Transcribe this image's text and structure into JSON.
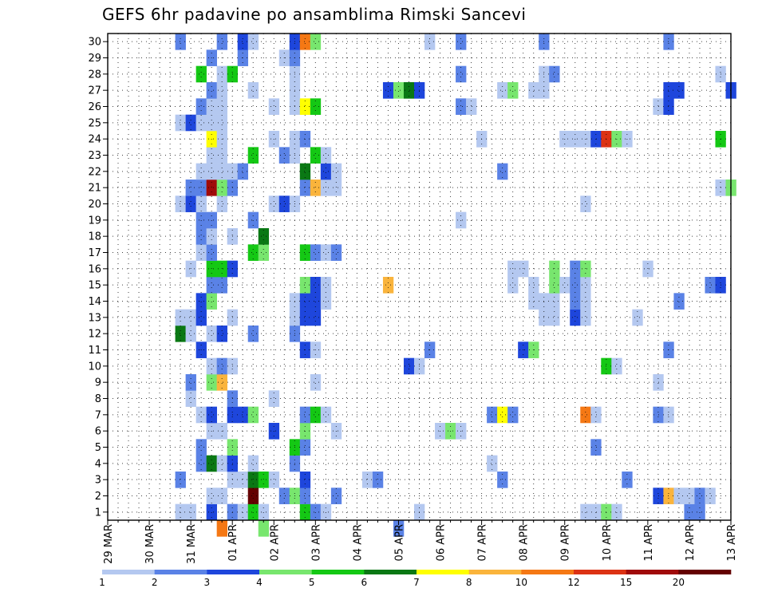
{
  "chart_data": {
    "type": "heatmap",
    "title": "GEFS 6hr padavine po ansamblima Rimski Sancevi",
    "x_tick_labels": [
      "29 MAR",
      "30 MAR",
      "31 MAR",
      "01 APR",
      "02 APR",
      "03 APR",
      "04 APR",
      "05 APR",
      "06 APR",
      "07 APR",
      "08 APR",
      "09 APR",
      "10 APR",
      "11 APR",
      "12 APR",
      "13 APR"
    ],
    "y_tick_labels": [
      1,
      2,
      3,
      4,
      5,
      6,
      7,
      8,
      9,
      10,
      11,
      12,
      13,
      14,
      15,
      16,
      17,
      18,
      19,
      20,
      21,
      22,
      23,
      24,
      25,
      26,
      27,
      28,
      29,
      30
    ],
    "x_range_steps": [
      0,
      60
    ],
    "y_range": [
      0.5,
      30.5
    ],
    "grid": true,
    "colorbar": {
      "labels": [
        "1",
        "2",
        "3",
        "4",
        "5",
        "6",
        "7",
        "8",
        "10",
        "12",
        "15",
        "20"
      ],
      "colors": [
        "#b4c8f0",
        "#5a82e6",
        "#1e46dc",
        "#78e66e",
        "#14c814",
        "#0a7814",
        "#ffff00",
        "#fab43c",
        "#f57814",
        "#dc3214",
        "#a00a0a",
        "#640000"
      ]
    },
    "cell_format": "[time_step, member, color_class]; time_step 0 = 29 MAR 00Z, 4 steps per day",
    "cells": [
      [
        7,
        1,
        0
      ],
      [
        8,
        1,
        0
      ],
      [
        10,
        1,
        2
      ],
      [
        12,
        1,
        1
      ],
      [
        13,
        1,
        0
      ],
      [
        14,
        1,
        4
      ],
      [
        15,
        1,
        0
      ],
      [
        19,
        1,
        4
      ],
      [
        20,
        1,
        1
      ],
      [
        21,
        1,
        0
      ],
      [
        30,
        1,
        0
      ],
      [
        46,
        1,
        0
      ],
      [
        47,
        1,
        0
      ],
      [
        48,
        1,
        3
      ],
      [
        49,
        1,
        0
      ],
      [
        56,
        1,
        1
      ],
      [
        57,
        1,
        1
      ],
      [
        10,
        2,
        0
      ],
      [
        11,
        2,
        0
      ],
      [
        14,
        2,
        11
      ],
      [
        17,
        2,
        1
      ],
      [
        18,
        2,
        3
      ],
      [
        19,
        2,
        1
      ],
      [
        22,
        2,
        1
      ],
      [
        53,
        2,
        2
      ],
      [
        54,
        2,
        7
      ],
      [
        55,
        2,
        0
      ],
      [
        56,
        2,
        0
      ],
      [
        57,
        2,
        1
      ],
      [
        58,
        2,
        0
      ],
      [
        7,
        3,
        1
      ],
      [
        12,
        3,
        0
      ],
      [
        13,
        3,
        0
      ],
      [
        14,
        3,
        5
      ],
      [
        15,
        3,
        4
      ],
      [
        16,
        3,
        0
      ],
      [
        19,
        3,
        2
      ],
      [
        25,
        3,
        0
      ],
      [
        26,
        3,
        1
      ],
      [
        38,
        3,
        1
      ],
      [
        50,
        3,
        1
      ],
      [
        9,
        4,
        1
      ],
      [
        10,
        4,
        5
      ],
      [
        11,
        4,
        0
      ],
      [
        12,
        4,
        2
      ],
      [
        14,
        4,
        0
      ],
      [
        18,
        4,
        1
      ],
      [
        37,
        4,
        0
      ],
      [
        9,
        5,
        1
      ],
      [
        12,
        5,
        3
      ],
      [
        18,
        5,
        4
      ],
      [
        19,
        5,
        1
      ],
      [
        47,
        5,
        1
      ],
      [
        10,
        6,
        0
      ],
      [
        11,
        6,
        0
      ],
      [
        16,
        6,
        2
      ],
      [
        19,
        6,
        3
      ],
      [
        22,
        6,
        0
      ],
      [
        32,
        6,
        0
      ],
      [
        33,
        6,
        3
      ],
      [
        34,
        6,
        0
      ],
      [
        9,
        7,
        0
      ],
      [
        10,
        7,
        2
      ],
      [
        12,
        7,
        2
      ],
      [
        13,
        7,
        2
      ],
      [
        14,
        7,
        3
      ],
      [
        19,
        7,
        1
      ],
      [
        20,
        7,
        4
      ],
      [
        21,
        7,
        0
      ],
      [
        37,
        7,
        1
      ],
      [
        38,
        7,
        6
      ],
      [
        39,
        7,
        1
      ],
      [
        46,
        7,
        8
      ],
      [
        47,
        7,
        0
      ],
      [
        53,
        7,
        1
      ],
      [
        54,
        7,
        0
      ],
      [
        8,
        8,
        0
      ],
      [
        12,
        8,
        1
      ],
      [
        16,
        8,
        0
      ],
      [
        8,
        9,
        1
      ],
      [
        10,
        9,
        3
      ],
      [
        11,
        9,
        7
      ],
      [
        20,
        9,
        0
      ],
      [
        53,
        9,
        0
      ],
      [
        10,
        10,
        0
      ],
      [
        11,
        10,
        1
      ],
      [
        12,
        10,
        0
      ],
      [
        29,
        10,
        2
      ],
      [
        30,
        10,
        0
      ],
      [
        48,
        10,
        4
      ],
      [
        49,
        10,
        0
      ],
      [
        9,
        11,
        2
      ],
      [
        19,
        11,
        2
      ],
      [
        20,
        11,
        0
      ],
      [
        31,
        11,
        1
      ],
      [
        40,
        11,
        2
      ],
      [
        41,
        11,
        3
      ],
      [
        54,
        11,
        1
      ],
      [
        7,
        12,
        5
      ],
      [
        8,
        12,
        0
      ],
      [
        10,
        12,
        0
      ],
      [
        11,
        12,
        2
      ],
      [
        14,
        12,
        1
      ],
      [
        18,
        12,
        1
      ],
      [
        7,
        13,
        0
      ],
      [
        8,
        13,
        0
      ],
      [
        9,
        13,
        2
      ],
      [
        12,
        13,
        0
      ],
      [
        18,
        13,
        0
      ],
      [
        19,
        13,
        2
      ],
      [
        20,
        13,
        2
      ],
      [
        42,
        13,
        0
      ],
      [
        43,
        13,
        0
      ],
      [
        45,
        13,
        2
      ],
      [
        46,
        13,
        0
      ],
      [
        51,
        13,
        0
      ],
      [
        9,
        14,
        2
      ],
      [
        10,
        14,
        3
      ],
      [
        18,
        14,
        0
      ],
      [
        19,
        14,
        2
      ],
      [
        20,
        14,
        2
      ],
      [
        21,
        14,
        0
      ],
      [
        41,
        14,
        0
      ],
      [
        42,
        14,
        0
      ],
      [
        43,
        14,
        0
      ],
      [
        45,
        14,
        1
      ],
      [
        46,
        14,
        0
      ],
      [
        55,
        14,
        1
      ],
      [
        10,
        15,
        1
      ],
      [
        11,
        15,
        1
      ],
      [
        19,
        15,
        3
      ],
      [
        20,
        15,
        2
      ],
      [
        21,
        15,
        0
      ],
      [
        27,
        15,
        7
      ],
      [
        39,
        15,
        0
      ],
      [
        41,
        15,
        0
      ],
      [
        43,
        15,
        3
      ],
      [
        44,
        15,
        0
      ],
      [
        45,
        15,
        1
      ],
      [
        46,
        15,
        0
      ],
      [
        58,
        15,
        1
      ],
      [
        59,
        15,
        2
      ],
      [
        8,
        16,
        0
      ],
      [
        10,
        16,
        4
      ],
      [
        11,
        16,
        4
      ],
      [
        12,
        16,
        2
      ],
      [
        39,
        16,
        0
      ],
      [
        40,
        16,
        0
      ],
      [
        43,
        16,
        3
      ],
      [
        45,
        16,
        1
      ],
      [
        46,
        16,
        3
      ],
      [
        52,
        16,
        0
      ],
      [
        9,
        17,
        0
      ],
      [
        10,
        17,
        1
      ],
      [
        14,
        17,
        4
      ],
      [
        15,
        17,
        3
      ],
      [
        19,
        17,
        4
      ],
      [
        20,
        17,
        1
      ],
      [
        21,
        17,
        0
      ],
      [
        22,
        17,
        1
      ],
      [
        9,
        18,
        1
      ],
      [
        10,
        18,
        0
      ],
      [
        12,
        18,
        0
      ],
      [
        15,
        18,
        5
      ],
      [
        9,
        19,
        1
      ],
      [
        10,
        19,
        1
      ],
      [
        14,
        19,
        1
      ],
      [
        34,
        19,
        0
      ],
      [
        7,
        20,
        0
      ],
      [
        8,
        20,
        2
      ],
      [
        9,
        20,
        0
      ],
      [
        11,
        20,
        0
      ],
      [
        16,
        20,
        0
      ],
      [
        17,
        20,
        2
      ],
      [
        18,
        20,
        0
      ],
      [
        46,
        20,
        0
      ],
      [
        8,
        21,
        1
      ],
      [
        9,
        21,
        1
      ],
      [
        10,
        21,
        10
      ],
      [
        11,
        21,
        3
      ],
      [
        12,
        21,
        1
      ],
      [
        19,
        21,
        1
      ],
      [
        20,
        21,
        7
      ],
      [
        21,
        21,
        0
      ],
      [
        22,
        21,
        0
      ],
      [
        59,
        21,
        0
      ],
      [
        60,
        21,
        3
      ],
      [
        9,
        22,
        0
      ],
      [
        10,
        22,
        0
      ],
      [
        11,
        22,
        0
      ],
      [
        12,
        22,
        0
      ],
      [
        13,
        22,
        1
      ],
      [
        19,
        22,
        5
      ],
      [
        21,
        22,
        2
      ],
      [
        22,
        22,
        0
      ],
      [
        38,
        22,
        1
      ],
      [
        10,
        23,
        0
      ],
      [
        11,
        23,
        0
      ],
      [
        14,
        23,
        4
      ],
      [
        17,
        23,
        1
      ],
      [
        18,
        23,
        0
      ],
      [
        20,
        23,
        4
      ],
      [
        21,
        23,
        0
      ],
      [
        10,
        24,
        6
      ],
      [
        11,
        24,
        0
      ],
      [
        16,
        24,
        0
      ],
      [
        18,
        24,
        0
      ],
      [
        19,
        24,
        1
      ],
      [
        36,
        24,
        0
      ],
      [
        44,
        24,
        0
      ],
      [
        45,
        24,
        0
      ],
      [
        46,
        24,
        0
      ],
      [
        47,
        24,
        2
      ],
      [
        48,
        24,
        9
      ],
      [
        49,
        24,
        3
      ],
      [
        50,
        24,
        0
      ],
      [
        59,
        24,
        4
      ],
      [
        7,
        25,
        0
      ],
      [
        8,
        25,
        2
      ],
      [
        9,
        25,
        0
      ],
      [
        10,
        25,
        0
      ],
      [
        11,
        25,
        0
      ],
      [
        9,
        26,
        1
      ],
      [
        10,
        26,
        0
      ],
      [
        11,
        26,
        0
      ],
      [
        16,
        26,
        0
      ],
      [
        18,
        26,
        0
      ],
      [
        19,
        26,
        6
      ],
      [
        20,
        26,
        4
      ],
      [
        34,
        26,
        1
      ],
      [
        35,
        26,
        0
      ],
      [
        53,
        26,
        0
      ],
      [
        54,
        26,
        2
      ],
      [
        10,
        27,
        1
      ],
      [
        11,
        27,
        0
      ],
      [
        14,
        27,
        0
      ],
      [
        18,
        27,
        0
      ],
      [
        27,
        27,
        2
      ],
      [
        28,
        27,
        3
      ],
      [
        29,
        27,
        5
      ],
      [
        30,
        27,
        2
      ],
      [
        38,
        27,
        0
      ],
      [
        39,
        27,
        3
      ],
      [
        41,
        27,
        0
      ],
      [
        42,
        27,
        0
      ],
      [
        54,
        27,
        2
      ],
      [
        55,
        27,
        2
      ],
      [
        60,
        27,
        2
      ],
      [
        9,
        28,
        4
      ],
      [
        11,
        28,
        0
      ],
      [
        12,
        28,
        4
      ],
      [
        18,
        28,
        0
      ],
      [
        34,
        28,
        1
      ],
      [
        42,
        28,
        0
      ],
      [
        43,
        28,
        1
      ],
      [
        59,
        28,
        0
      ],
      [
        10,
        29,
        1
      ],
      [
        13,
        29,
        1
      ],
      [
        17,
        29,
        0
      ],
      [
        18,
        29,
        1
      ],
      [
        7,
        30,
        1
      ],
      [
        11,
        30,
        1
      ],
      [
        13,
        30,
        2
      ],
      [
        14,
        30,
        0
      ],
      [
        18,
        30,
        2
      ],
      [
        19,
        30,
        8
      ],
      [
        20,
        30,
        3
      ],
      [
        31,
        30,
        0
      ],
      [
        34,
        30,
        1
      ],
      [
        42,
        30,
        1
      ],
      [
        54,
        30,
        1
      ],
      [
        11,
        0,
        8
      ],
      [
        15,
        0,
        3
      ],
      [
        28,
        0,
        1
      ]
    ]
  }
}
